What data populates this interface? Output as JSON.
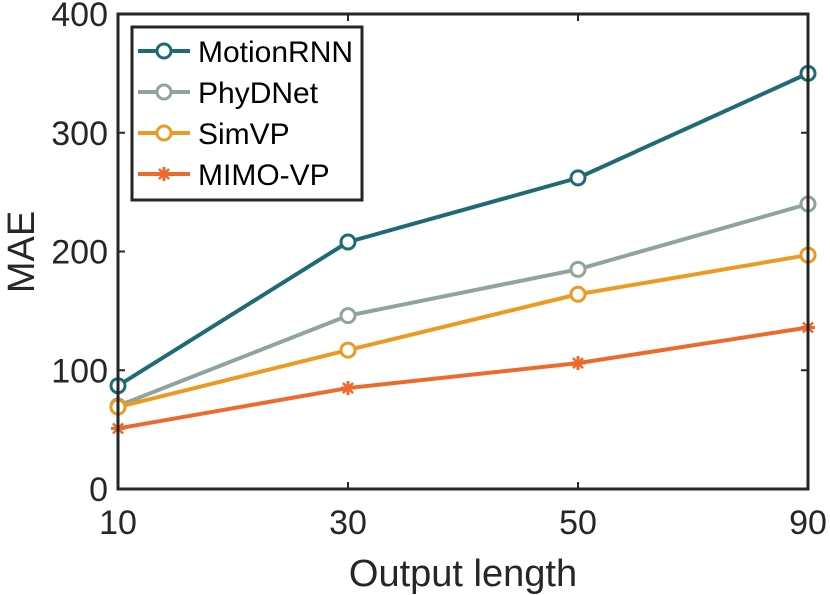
{
  "chart_data": {
    "type": "line",
    "title": "",
    "xlabel": "Output length",
    "ylabel": "MAE",
    "categories": [
      "10",
      "30",
      "50",
      "90"
    ],
    "ylim": [
      0,
      400
    ],
    "yticks": [
      0,
      100,
      200,
      300,
      400
    ],
    "grid": false,
    "legend_position": "top-left",
    "series": [
      {
        "name": "MotionRNN",
        "values": [
          87,
          208,
          262,
          350
        ],
        "color": "#1f6b75",
        "marker": "circle"
      },
      {
        "name": "PhyDNet",
        "values": [
          70,
          146,
          185,
          240
        ],
        "color": "#8fa39f",
        "marker": "circle"
      },
      {
        "name": "SimVP",
        "values": [
          69,
          117,
          164,
          197
        ],
        "color": "#eb9b22",
        "marker": "circle"
      },
      {
        "name": "MIMO-VP",
        "values": [
          51,
          85,
          106,
          136
        ],
        "color": "#ee6a2b",
        "marker": "star"
      }
    ]
  }
}
